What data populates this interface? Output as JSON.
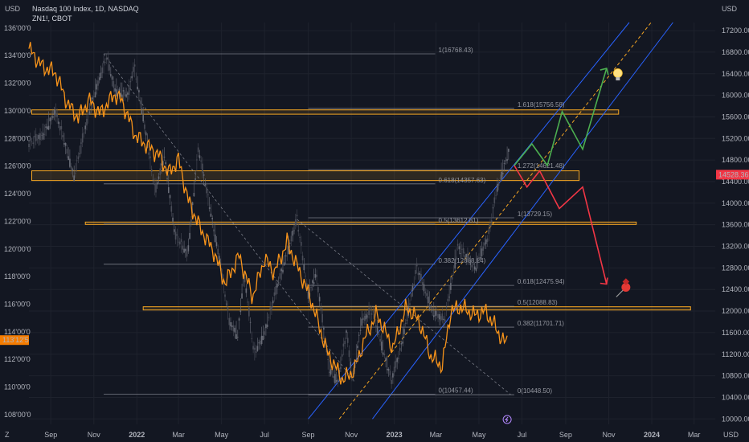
{
  "header": {
    "primary_symbol": "Nasdaq 100 Index, 1D, NASDAQ",
    "secondary_symbol": "ZN1!, CBOT"
  },
  "axes": {
    "left_unit": "USD",
    "right_unit_top": "USD",
    "right_unit_bottom": "USD",
    "corner_label": "Z"
  },
  "colors": {
    "background": "#131722",
    "grid": "#1e222d",
    "ndx_candle_up": "#6a6d78",
    "ndx_candle_down": "#4a4d58",
    "zn_line": "#f7931a",
    "fib_line": "#787b86",
    "zone": "#f5a623",
    "channel": "#2962ff",
    "bull_path": "#4caf50",
    "bear_path": "#f23645",
    "price_tag": "#f23645",
    "zn_tag": "#f57c00"
  },
  "icons": [
    "lightbulb-icon",
    "pushpin-icon",
    "lightning-icon"
  ],
  "chart_data": {
    "type": "line",
    "x_ticks": [
      "Sep",
      "Nov",
      "2022",
      "Mar",
      "May",
      "Jul",
      "Sep",
      "Nov",
      "2023",
      "Mar",
      "May",
      "Jul",
      "Sep",
      "Nov",
      "2024",
      "Mar"
    ],
    "y_left_ticks": [
      "136'00'0",
      "134'00'0",
      "132'00'0",
      "130'00'0",
      "128'00'0",
      "126'00'0",
      "124'00'0",
      "122'00'0",
      "120'00'0",
      "118'00'0",
      "116'00'0",
      "114'00'0",
      "112'00'0",
      "110'00'0",
      "108'00'0"
    ],
    "y_right_ticks": [
      "17200.00",
      "16800.00",
      "16400.00",
      "16000.00",
      "15600.00",
      "15200.00",
      "14800.00",
      "14400.00",
      "14000.00",
      "13600.00",
      "13200.00",
      "12800.00",
      "12400.00",
      "12000.00",
      "11600.00",
      "11200.00",
      "10800.00",
      "10400.00",
      "10000.00"
    ],
    "y_right_range": [
      9900,
      17350
    ],
    "y_left_range": [
      107.3,
      136.4
    ],
    "current_price_label": "14528.36",
    "current_price": 14528.36,
    "zn_price_label": "113'12'5",
    "zn_price": 113.4,
    "series": [
      {
        "name": "Nasdaq 100 Index",
        "axis": "right",
        "points": [
          [
            "2021-08-01",
            15100
          ],
          [
            "2021-08-20",
            15250
          ],
          [
            "2021-09-07",
            15700
          ],
          [
            "2021-09-20",
            15150
          ],
          [
            "2021-10-04",
            14500
          ],
          [
            "2021-10-20",
            15400
          ],
          [
            "2021-11-01",
            16000
          ],
          [
            "2021-11-19",
            16700
          ],
          [
            "2021-12-01",
            16100
          ],
          [
            "2021-12-20",
            16000
          ],
          [
            "2021-12-28",
            16550
          ],
          [
            "2022-01-10",
            15600
          ],
          [
            "2022-01-27",
            14200
          ],
          [
            "2022-02-09",
            14900
          ],
          [
            "2022-02-24",
            13400
          ],
          [
            "2022-03-14",
            13050
          ],
          [
            "2022-03-29",
            15000
          ],
          [
            "2022-04-12",
            14100
          ],
          [
            "2022-04-29",
            12900
          ],
          [
            "2022-05-12",
            11800
          ],
          [
            "2022-05-24",
            11550
          ],
          [
            "2022-06-02",
            12700
          ],
          [
            "2022-06-16",
            11200
          ],
          [
            "2022-07-01",
            11600
          ],
          [
            "2022-07-20",
            12500
          ],
          [
            "2022-08-16",
            13700
          ],
          [
            "2022-09-01",
            12300
          ],
          [
            "2022-09-12",
            12700
          ],
          [
            "2022-09-30",
            10950
          ],
          [
            "2022-10-13",
            10700
          ],
          [
            "2022-10-25",
            11600
          ],
          [
            "2022-11-03",
            10700
          ],
          [
            "2022-11-15",
            11800
          ],
          [
            "2022-12-01",
            12000
          ],
          [
            "2022-12-28",
            10700
          ],
          [
            "2023-01-10",
            11300
          ],
          [
            "2023-02-02",
            12800
          ],
          [
            "2023-02-24",
            12000
          ],
          [
            "2023-03-13",
            11800
          ],
          [
            "2023-04-01",
            13200
          ],
          [
            "2023-04-25",
            12800
          ],
          [
            "2023-05-15",
            13400
          ],
          [
            "2023-05-26",
            14250
          ],
          [
            "2023-06-12",
            14950
          ]
        ]
      },
      {
        "name": "ZN1!",
        "axis": "left",
        "points": [
          [
            "2021-08-01",
            134.5
          ],
          [
            "2021-08-20",
            133.2
          ],
          [
            "2021-09-07",
            132.8
          ],
          [
            "2021-09-25",
            130.5
          ],
          [
            "2021-10-10",
            129.5
          ],
          [
            "2021-10-25",
            130.8
          ],
          [
            "2021-11-10",
            129.8
          ],
          [
            "2021-11-30",
            131.2
          ],
          [
            "2021-12-10",
            130.8
          ],
          [
            "2021-12-30",
            128.2
          ],
          [
            "2022-01-15",
            127.5
          ],
          [
            "2022-02-01",
            126.8
          ],
          [
            "2022-02-15",
            125.5
          ],
          [
            "2022-03-01",
            126.5
          ],
          [
            "2022-03-15",
            123.5
          ],
          [
            "2022-04-01",
            121.5
          ],
          [
            "2022-04-20",
            119.8
          ],
          [
            "2022-05-06",
            117.5
          ],
          [
            "2022-05-26",
            119.5
          ],
          [
            "2022-06-14",
            116.5
          ],
          [
            "2022-07-01",
            119.3
          ],
          [
            "2022-07-15",
            118.3
          ],
          [
            "2022-08-02",
            120.5
          ],
          [
            "2022-08-20",
            118.3
          ],
          [
            "2022-09-05",
            116.3
          ],
          [
            "2022-09-28",
            112.5
          ],
          [
            "2022-10-20",
            110.5
          ],
          [
            "2022-11-05",
            111.2
          ],
          [
            "2022-11-20",
            113.5
          ],
          [
            "2022-12-07",
            115.3
          ],
          [
            "2022-12-30",
            112.8
          ],
          [
            "2023-01-18",
            115.8
          ],
          [
            "2023-02-05",
            114.8
          ],
          [
            "2023-02-22",
            112.2
          ],
          [
            "2023-03-10",
            111.5
          ],
          [
            "2023-03-22",
            115.5
          ],
          [
            "2023-04-06",
            115.8
          ],
          [
            "2023-04-25",
            115.2
          ],
          [
            "2023-05-10",
            115.5
          ],
          [
            "2023-05-25",
            114.3
          ],
          [
            "2023-06-05",
            113.2
          ],
          [
            "2023-06-10",
            113.4
          ]
        ]
      },
      {
        "name": "Bullish projection",
        "axis": "right",
        "points": [
          [
            "2023-06-20",
            14700
          ],
          [
            "2023-07-15",
            15100
          ],
          [
            "2023-08-06",
            14700
          ],
          [
            "2023-08-27",
            15700
          ],
          [
            "2023-09-25",
            15000
          ],
          [
            "2023-10-29",
            16500
          ]
        ]
      },
      {
        "name": "Bearish projection",
        "axis": "right",
        "points": [
          [
            "2023-06-20",
            14700
          ],
          [
            "2023-07-08",
            14300
          ],
          [
            "2023-07-26",
            14600
          ],
          [
            "2023-08-23",
            13900
          ],
          [
            "2023-09-25",
            14300
          ],
          [
            "2023-10-29",
            12500
          ]
        ]
      }
    ],
    "fib_retracement_left": {
      "levels": [
        {
          "label": "1(16768.43)",
          "value": 16768.43
        },
        {
          "label": "0.618(14357.63)",
          "value": 14357.63
        },
        {
          "label": "0.5(13612.81)",
          "value": 13612.81
        },
        {
          "label": "0.382(12868.24)",
          "value": 12868.24
        },
        {
          "label": "0(10457.44)",
          "value": 10457.44
        }
      ]
    },
    "fib_extension_right": {
      "levels": [
        {
          "label": "1.618(15756.58)",
          "value": 15756.58
        },
        {
          "label": "1.272(14621.48)",
          "value": 14621.48
        },
        {
          "label": "1(13729.15)",
          "value": 13729.15
        },
        {
          "label": "0.618(12475.94)",
          "value": 12475.94
        },
        {
          "label": "0.5(12088.83)",
          "value": 12088.83
        },
        {
          "label": "0.382(11701.71)",
          "value": 11701.71
        },
        {
          "label": "0(10448.50)",
          "value": 10448.5
        }
      ]
    },
    "support_resistance_zones": [
      {
        "from": 15650,
        "to": 15730
      },
      {
        "from": 14420,
        "to": 14600
      },
      {
        "from": 13620,
        "to": 13650
      },
      {
        "from": 12020,
        "to": 12080
      }
    ],
    "channel": {
      "upper": [
        [
          "2022-09-01",
          10000
        ],
        [
          "2023-11-30",
          17350
        ]
      ],
      "mid": [
        [
          "2022-10-15",
          10000
        ],
        [
          "2023-12-31",
          17350
        ]
      ],
      "lower": [
        [
          "2022-12-01",
          10000
        ],
        [
          "2024-01-31",
          17350
        ]
      ]
    },
    "grid": true
  }
}
